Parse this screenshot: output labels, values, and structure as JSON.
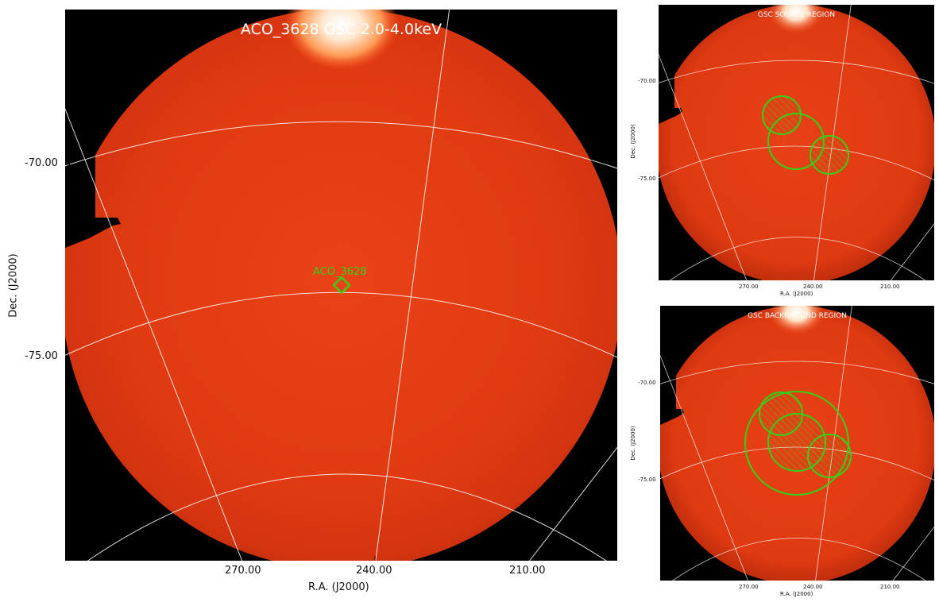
{
  "main": {
    "title": "ACO_3628 GSC 2.0-4.0keV",
    "marker_label": "ACO_3628",
    "x_axis_label": "R.A. (J2000)",
    "y_axis_label": "Dec. (J2000)",
    "x_ticks": [
      "270.00",
      "240.00",
      "210.00"
    ],
    "y_ticks": [
      "-70.00",
      "-75.00"
    ]
  },
  "source_panel": {
    "title": "GSC SOURCE REGION",
    "x_axis_label": "R.A. (J2000)",
    "y_axis_label": "Dec. (J2000)",
    "x_ticks": [
      "270.00",
      "240.00",
      "210.00"
    ],
    "y_ticks": [
      "-70.00",
      "-75.00"
    ]
  },
  "background_panel": {
    "title": "GSC BACKGROUND REGION",
    "x_axis_label": "R.A. (J2000)",
    "y_axis_label": "Dec. (J2000)",
    "x_ticks": [
      "270.00",
      "240.00",
      "210.00"
    ],
    "y_ticks": [
      "-70.00",
      "-75.00"
    ]
  },
  "colors": {
    "image": "#e43510",
    "grid": "#ffffff",
    "region": "#33d11a"
  }
}
